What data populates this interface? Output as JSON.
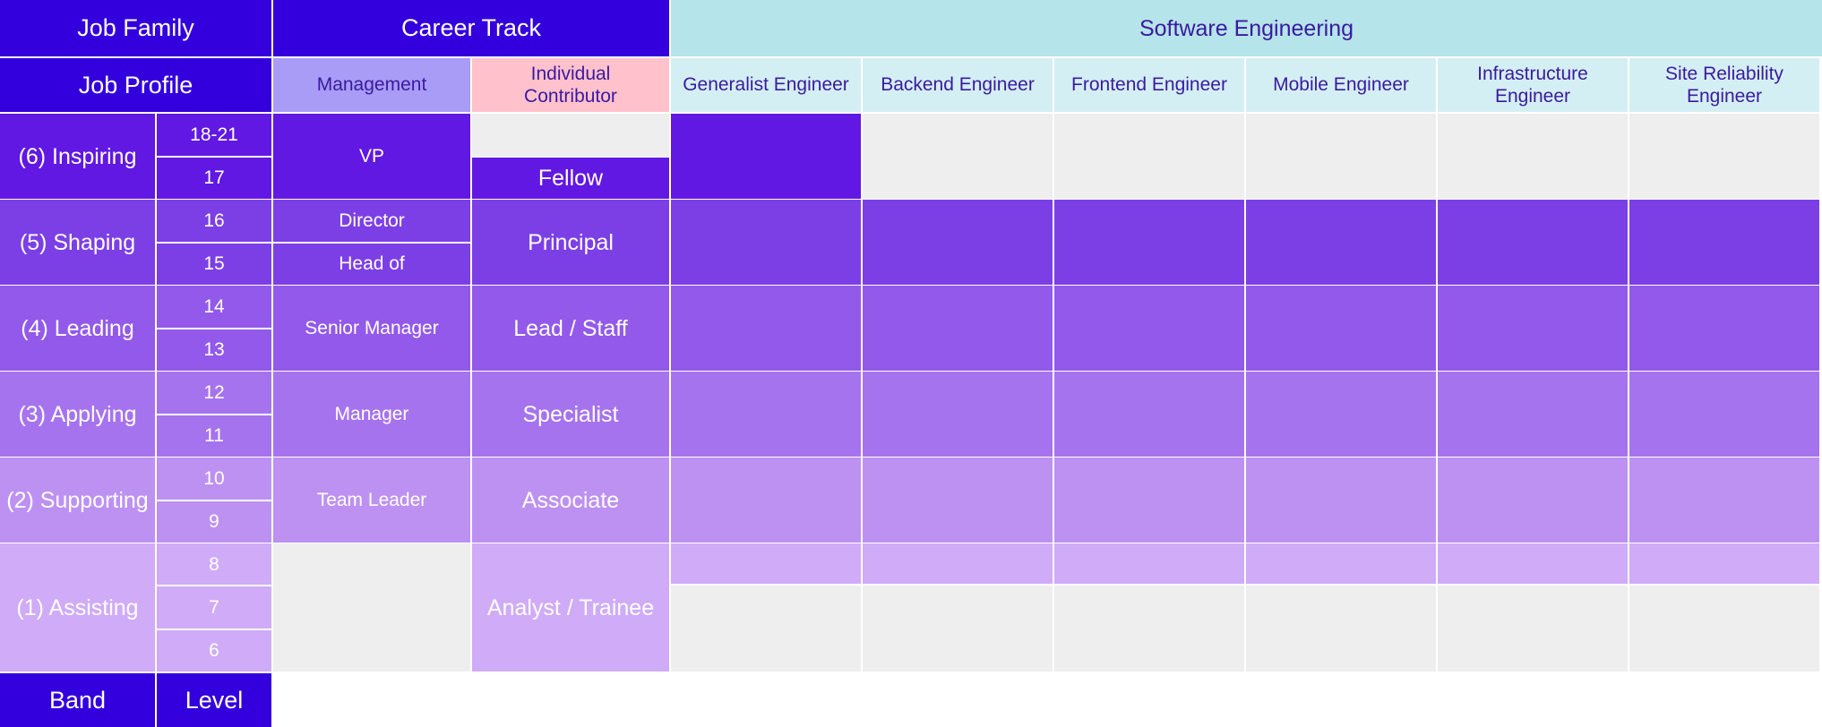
{
  "header": {
    "job_family_label": "Job Family",
    "career_track_label": "Career Track",
    "job_family_value": "Software Engineering",
    "job_profile_label": "Job Profile",
    "management_label": "Management",
    "ic_label": "Individual\nContributor",
    "roles": [
      "Generalist Engineer",
      "Backend Engineer",
      "Frontend Engineer",
      "Mobile Engineer",
      "Infrastructure\nEngineer",
      "Site Reliability\nEngineer"
    ]
  },
  "bands": [
    {
      "label": "(6) Inspiring",
      "levels": [
        "18-21",
        "17"
      ],
      "management": [
        "VP"
      ],
      "ic": "Fellow"
    },
    {
      "label": "(5) Shaping",
      "levels": [
        "16",
        "15"
      ],
      "management": [
        "Director",
        "Head of"
      ],
      "ic": "Principal"
    },
    {
      "label": "(4) Leading",
      "levels": [
        "14",
        "13"
      ],
      "management": [
        "Senior Manager"
      ],
      "ic": "Lead / Staff"
    },
    {
      "label": "(3) Applying",
      "levels": [
        "12",
        "11"
      ],
      "management": [
        "Manager"
      ],
      "ic": "Specialist"
    },
    {
      "label": "(2) Supporting",
      "levels": [
        "10",
        "9"
      ],
      "management": [
        "Team Leader"
      ],
      "ic": "Associate"
    },
    {
      "label": "(1) Assisting",
      "levels": [
        "8",
        "7",
        "6"
      ],
      "management": [],
      "ic": "Analyst / Trainee"
    }
  ],
  "footer": {
    "band_label": "Band",
    "level_label": "Level"
  },
  "colors": {
    "header_blue": "#3300dd",
    "band6": "#6118e2",
    "band5": "#7c3fe6",
    "band4": "#9259ea",
    "band3": "#a673ee",
    "band2": "#bd91f2",
    "band1": "#d0abf7",
    "management_header": "#a99cf7",
    "ic_header": "#ffc1cc",
    "family_header": "#b5e4ea",
    "role_header": "#d4eff3",
    "empty": "#eeeeee"
  }
}
